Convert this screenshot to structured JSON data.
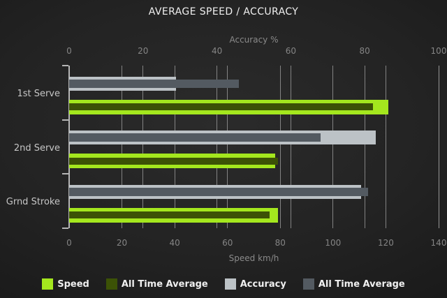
{
  "title": "AVERAGE SPEED / ACCURACY",
  "chart_data": {
    "type": "bar",
    "orientation": "horizontal",
    "categories": [
      "1st Serve",
      "2nd Serve",
      "Grnd Stroke"
    ],
    "series": [
      {
        "name": "Speed",
        "axis": "bottom",
        "color": "#a4e71e",
        "values": [
          121,
          78,
          79
        ]
      },
      {
        "name": "All Time Average",
        "axis": "bottom",
        "color": "#3c5206",
        "values": [
          115,
          79,
          76
        ]
      },
      {
        "name": "Accuracy",
        "axis": "top",
        "color": "#bcc2c6",
        "values": [
          29,
          83,
          79
        ]
      },
      {
        "name": "All Time Average",
        "axis": "top",
        "color": "#535a61",
        "values": [
          46,
          68,
          81
        ]
      }
    ],
    "axes": {
      "top": {
        "label": "Accuracy %",
        "min": 0,
        "max": 100,
        "ticks": [
          0,
          20,
          40,
          60,
          80,
          100
        ]
      },
      "bottom": {
        "label": "Speed km/h",
        "min": 0,
        "max": 140,
        "ticks": [
          0,
          20,
          40,
          60,
          80,
          100,
          120,
          140
        ]
      }
    },
    "grid": true,
    "legend_position": "bottom"
  },
  "colors": {
    "background": "#232323",
    "gridline": "#9b9b9b",
    "axis_line": "#b5b5b5",
    "title_text": "#f0f0f0",
    "axis_text": "#8a8a8a",
    "category_text": "#c6c6c6",
    "legend_text": "#f0f0f0"
  }
}
